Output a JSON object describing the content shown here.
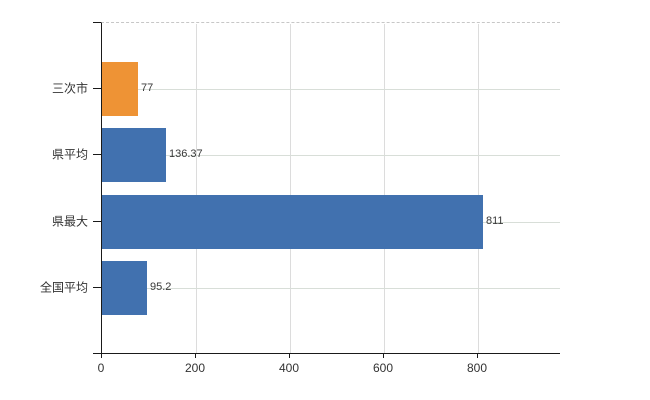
{
  "chart_data": {
    "type": "bar",
    "orientation": "horizontal",
    "title": "",
    "xlabel": "",
    "ylabel": "",
    "categories": [
      "三次市",
      "県平均",
      "県最大",
      "全国平均"
    ],
    "values": [
      77,
      136.37,
      811,
      95.2
    ],
    "value_labels": [
      "77",
      "136.37",
      "811",
      "95.2"
    ],
    "bar_colors": [
      "#ee9335",
      "#4171af",
      "#4171af",
      "#4171af"
    ],
    "xticks": [
      0,
      200,
      400,
      600,
      800
    ],
    "xtick_labels": [
      "0",
      "200",
      "400",
      "600",
      "800"
    ],
    "xlim": [
      0,
      975
    ],
    "grid": true,
    "legend": false,
    "colors": {
      "bar_orange": "#ee9335",
      "bar_blue": "#4171af",
      "grid_horizontal": "#d8ded8",
      "grid_vertical": "#dcdcdc",
      "plot_top_dashed_border": "#c7c7c7",
      "axis": "#1a1a1a",
      "text": "#333333",
      "background": "#ffffff"
    }
  }
}
